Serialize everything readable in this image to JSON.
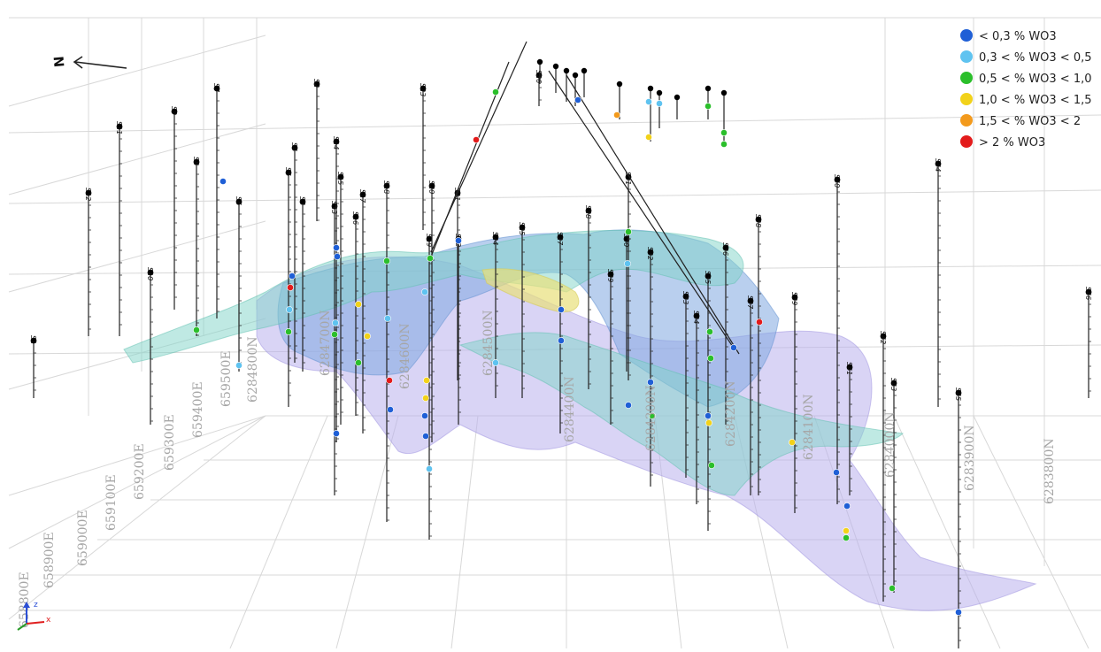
{
  "north_arrow": {
    "label": "N"
  },
  "legend": {
    "items": [
      {
        "label": "< 0,3 % WO3",
        "color": "#1f5fd6"
      },
      {
        "label": "0,3 < % WO3 < 0,5",
        "color": "#5fc3f0"
      },
      {
        "label": "0,5 < % WO3 < 1,0",
        "color": "#2bbf2b"
      },
      {
        "label": "1,0 < % WO3 < 1,5",
        "color": "#f2d21a"
      },
      {
        "label": "1,5 < % WO3 < 2",
        "color": "#f39a1c"
      },
      {
        "label": "> 2 % WO3",
        "color": "#e31b1b"
      }
    ]
  },
  "northing_labels": [
    "6284800N",
    "6284700N",
    "6284600N",
    "6284500N",
    "6284400N",
    "6284300N",
    "6284200N",
    "6284100N",
    "6284000N",
    "6283900N",
    "6283800N"
  ],
  "easting_labels": [
    "658800E",
    "658900E",
    "659000E",
    "659100E",
    "659200E",
    "659300E",
    "659400E",
    "659500E"
  ],
  "hole_labels": [
    "S1",
    "S12",
    "S11",
    "S10",
    "S9",
    "S8",
    "S7",
    "S6",
    "S5",
    "S4",
    "S3",
    "S2",
    "S13",
    "S14",
    "S15",
    "S16",
    "S17",
    "S18",
    "S19",
    "S20",
    "S21",
    "S22",
    "S23",
    "S24",
    "S25",
    "S26",
    "S27",
    "S28",
    "S29",
    "S30",
    "S31",
    "S32",
    "S33",
    "S34",
    "S35",
    "S36",
    "S37",
    "S38",
    "S39",
    "S40",
    "S41",
    "S42",
    "S43",
    "S44",
    "S45",
    "S46",
    "S47",
    "S48",
    "S49",
    "S50",
    "S51",
    "S52"
  ],
  "axis_triad": {
    "z": "z",
    "x": "x"
  },
  "colors": {
    "lens_blue": "#7fa8e0",
    "lens_teal": "#7fd4c8",
    "lens_violet": "#b9b0ec",
    "lens_yellow": "#e8e07a"
  }
}
